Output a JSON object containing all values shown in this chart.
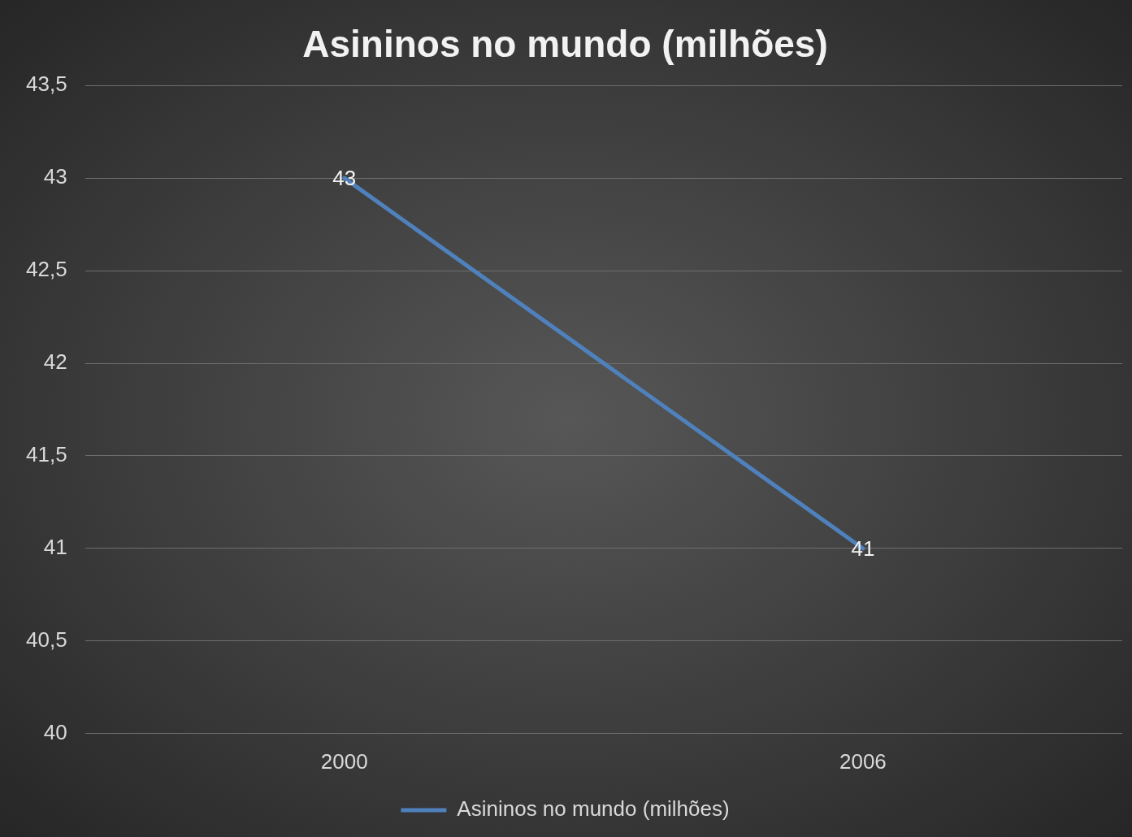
{
  "chart_data": {
    "type": "line",
    "title": "Asininos no mundo (milhões)",
    "categories": [
      "2000",
      "2006"
    ],
    "series": [
      {
        "name": "Asininos no mundo (milhões)",
        "color": "#4f81bd",
        "values": [
          43,
          41
        ]
      }
    ],
    "ylim": [
      40,
      43.5
    ],
    "yticks": [
      {
        "value": 40,
        "label": "40"
      },
      {
        "value": 40.5,
        "label": "40,5"
      },
      {
        "value": 41,
        "label": "41"
      },
      {
        "value": 41.5,
        "label": "41,5"
      },
      {
        "value": 42,
        "label": "42"
      },
      {
        "value": 42.5,
        "label": "42,5"
      },
      {
        "value": 43,
        "label": "43"
      },
      {
        "value": 43.5,
        "label": "43,5"
      }
    ],
    "grid": "y",
    "legend": "bottom",
    "data_labels": true,
    "marker": "none",
    "line_style": "solid"
  }
}
